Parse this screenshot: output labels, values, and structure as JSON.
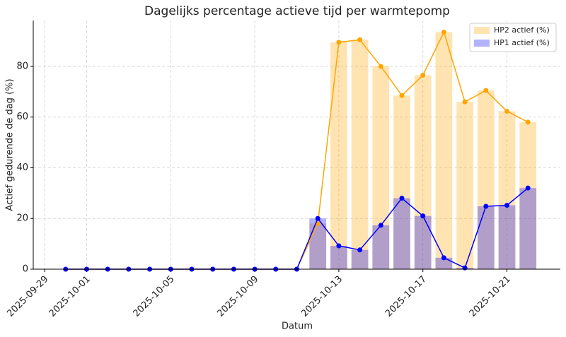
{
  "chart_data": {
    "type": "bar_line",
    "title": "Dagelijks percentage actieve tijd per warmtepomp",
    "xlabel": "Datum",
    "ylabel": "Actief gedurende de dag (%)",
    "x": [
      "2025-09-30",
      "2025-10-01",
      "2025-10-02",
      "2025-10-03",
      "2025-10-04",
      "2025-10-05",
      "2025-10-06",
      "2025-10-07",
      "2025-10-08",
      "2025-10-09",
      "2025-10-10",
      "2025-10-11",
      "2025-10-12",
      "2025-10-13",
      "2025-10-14",
      "2025-10-15",
      "2025-10-16",
      "2025-10-17",
      "2025-10-18",
      "2025-10-19",
      "2025-10-20",
      "2025-10-21",
      "2025-10-22"
    ],
    "series": [
      {
        "name": "HP2 actief (%)",
        "color": "#ffa500",
        "values": [
          0,
          0,
          0,
          0,
          0,
          0,
          0,
          0,
          0,
          0,
          0,
          0,
          18,
          89.5,
          90.5,
          80,
          68.5,
          76.5,
          93.5,
          66,
          70.5,
          62.3,
          58
        ]
      },
      {
        "name": "HP1 actief (%)",
        "color": "#0000ff",
        "values": [
          0,
          0,
          0,
          0,
          0,
          0,
          0,
          0,
          0,
          0,
          0,
          0,
          20,
          9.2,
          7.6,
          17.3,
          28,
          21,
          4.5,
          0.5,
          24.8,
          25.2,
          32
        ]
      }
    ],
    "xlim": [
      "2025-09-28T11:00",
      "2025-10-23T13:00"
    ],
    "xticks": [
      "2025-09-29",
      "2025-10-01",
      "2025-10-05",
      "2025-10-09",
      "2025-10-13",
      "2025-10-17",
      "2025-10-21"
    ],
    "ylim": [
      0,
      98.1
    ],
    "yticks": [
      0,
      20,
      40,
      60,
      80
    ],
    "grid": true,
    "legend": "upper right"
  }
}
